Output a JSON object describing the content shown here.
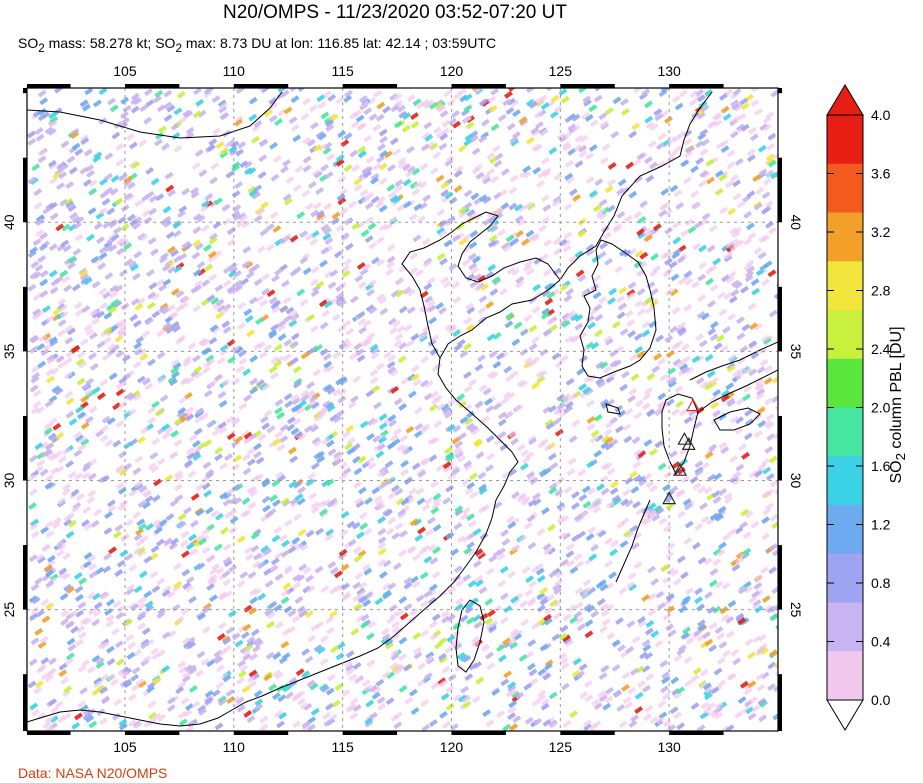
{
  "title": "N20/OMPS - 11/23/2020 03:52-07:20 UT",
  "subtitle": {
    "prefix": "SO",
    "sub1": "2",
    "mid1": " mass: 58.278 kt; SO",
    "sub2": "2",
    "mid2": " max: 8.73 DU at lon: 116.85 lat: 42.14 ; 03:59UTC"
  },
  "credit": "Data: NASA N20/OMPS",
  "colorbar": {
    "label_prefix": "SO",
    "label_sub": "2",
    "label_suffix": " column PBL [DU]",
    "ticks": [
      "4.0",
      "3.6",
      "3.2",
      "2.8",
      "2.4",
      "2.0",
      "1.6",
      "1.2",
      "0.8",
      "0.4",
      "0.0"
    ],
    "range": [
      0.0,
      4.0
    ],
    "colors": [
      "#ffffff",
      "#f2c8ee",
      "#c8b4f0",
      "#9fa4f2",
      "#6eaaf0",
      "#3cd2e6",
      "#46e6a0",
      "#5ae63c",
      "#c8f03c",
      "#f2e63c",
      "#f2a028",
      "#f25a1e",
      "#e61e14"
    ]
  },
  "chart_data": {
    "type": "heatmap",
    "title": "N20/OMPS - 11/23/2020 03:52-07:20 UT",
    "xlabel": "",
    "ylabel": "",
    "x_ticks": [
      "105",
      "110",
      "115",
      "120",
      "125",
      "130"
    ],
    "y_ticks": [
      "40",
      "35",
      "30",
      "25"
    ],
    "x_tick_values": [
      105,
      110,
      115,
      120,
      125,
      130
    ],
    "y_tick_values": [
      40,
      35,
      30,
      25
    ],
    "xlim": [
      100.5,
      135
    ],
    "ylim": [
      20.3,
      45.2
    ],
    "grid": true,
    "so2_max": {
      "value": 8.73,
      "lon": 116.85,
      "lat": 42.14
    },
    "so2_mass_kt": 58.278,
    "volcano_markers": [
      {
        "lon": 131.1,
        "lat": 32.9,
        "color": "#e03020"
      },
      {
        "lon": 130.7,
        "lat": 31.6,
        "color": "#2a2a2a"
      },
      {
        "lon": 130.9,
        "lat": 31.4,
        "color": "#2a2a2a"
      },
      {
        "lon": 130.5,
        "lat": 30.4,
        "color": "#2a2a2a"
      },
      {
        "lon": 130.0,
        "lat": 29.3,
        "color": "#2a2a2a"
      }
    ]
  }
}
